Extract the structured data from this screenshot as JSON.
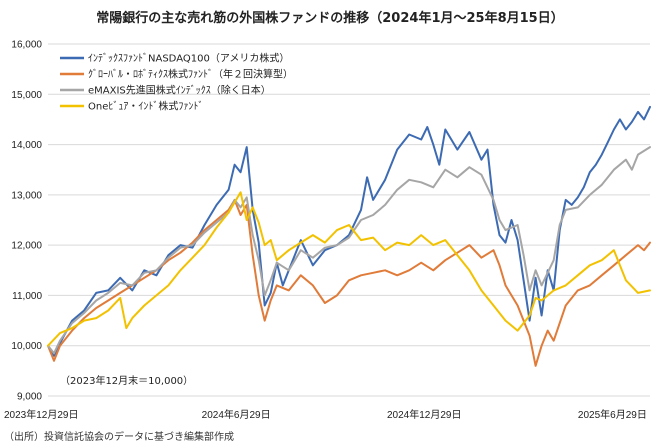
{
  "chart_data": {
    "type": "line",
    "title": "常陽銀行の主な売れ筋の外国株ファンドの推移（2024年1月〜25年8月15日）",
    "xlabel": "",
    "ylabel": "",
    "ylim": [
      9000,
      16000
    ],
    "y_ticks": [
      9000,
      10000,
      11000,
      12000,
      13000,
      14000,
      15000,
      16000
    ],
    "y_tick_labels": [
      "9,000",
      "10,000",
      "11,000",
      "12,000",
      "13,000",
      "14,000",
      "15,000",
      "16,000"
    ],
    "x_ticks": [
      {
        "label": "2023年12月29日",
        "t": 0
      },
      {
        "label": "2024年6月29日",
        "t": 0.3125
      },
      {
        "label": "2024年12月29日",
        "t": 0.625
      },
      {
        "label": "2025年6月29日",
        "t": 0.9375
      }
    ],
    "grid": true,
    "note": "（2023年12月末＝10,000）",
    "source": "（出所）投資信託協会のデータに基づき編集部作成",
    "series": [
      {
        "name": "ｲﾝﾃﾞｯｸｽﾌｧﾝﾄﾞNASDAQ100（アメリカ株式）",
        "color": "#3d6bb3",
        "points": [
          [
            0.0,
            10000
          ],
          [
            0.01,
            9800
          ],
          [
            0.02,
            10050
          ],
          [
            0.04,
            10500
          ],
          [
            0.06,
            10700
          ],
          [
            0.08,
            11050
          ],
          [
            0.1,
            11100
          ],
          [
            0.12,
            11350
          ],
          [
            0.14,
            11100
          ],
          [
            0.16,
            11500
          ],
          [
            0.18,
            11400
          ],
          [
            0.2,
            11800
          ],
          [
            0.22,
            12000
          ],
          [
            0.24,
            11950
          ],
          [
            0.26,
            12400
          ],
          [
            0.28,
            12800
          ],
          [
            0.3,
            13100
          ],
          [
            0.31,
            13600
          ],
          [
            0.32,
            13450
          ],
          [
            0.33,
            13950
          ],
          [
            0.34,
            12700
          ],
          [
            0.35,
            12050
          ],
          [
            0.36,
            10800
          ],
          [
            0.37,
            11050
          ],
          [
            0.38,
            11650
          ],
          [
            0.39,
            11200
          ],
          [
            0.4,
            11500
          ],
          [
            0.42,
            12100
          ],
          [
            0.44,
            11600
          ],
          [
            0.46,
            11900
          ],
          [
            0.48,
            12000
          ],
          [
            0.5,
            12200
          ],
          [
            0.52,
            12700
          ],
          [
            0.53,
            13350
          ],
          [
            0.54,
            12900
          ],
          [
            0.56,
            13300
          ],
          [
            0.58,
            13900
          ],
          [
            0.6,
            14200
          ],
          [
            0.62,
            14100
          ],
          [
            0.63,
            14350
          ],
          [
            0.64,
            14000
          ],
          [
            0.65,
            13600
          ],
          [
            0.66,
            14300
          ],
          [
            0.68,
            13900
          ],
          [
            0.7,
            14250
          ],
          [
            0.72,
            13700
          ],
          [
            0.73,
            13900
          ],
          [
            0.74,
            12800
          ],
          [
            0.75,
            12200
          ],
          [
            0.76,
            12050
          ],
          [
            0.77,
            12500
          ],
          [
            0.78,
            12100
          ],
          [
            0.79,
            11300
          ],
          [
            0.8,
            10500
          ],
          [
            0.81,
            11350
          ],
          [
            0.82,
            10600
          ],
          [
            0.83,
            11500
          ],
          [
            0.84,
            11100
          ],
          [
            0.85,
            12300
          ],
          [
            0.86,
            12900
          ],
          [
            0.87,
            12800
          ],
          [
            0.88,
            12950
          ],
          [
            0.89,
            13150
          ],
          [
            0.9,
            13450
          ],
          [
            0.91,
            13600
          ],
          [
            0.92,
            13800
          ],
          [
            0.93,
            14050
          ],
          [
            0.94,
            14300
          ],
          [
            0.95,
            14500
          ],
          [
            0.96,
            14300
          ],
          [
            0.97,
            14450
          ],
          [
            0.98,
            14650
          ],
          [
            0.99,
            14500
          ],
          [
            1.0,
            14750
          ]
        ]
      },
      {
        "name": "ｸﾞﾛｰﾊﾞﾙ・ﾛﾎﾞﾃｨｸｽ株式ﾌｧﾝﾄﾞ（年２回決算型）",
        "color": "#e07b39",
        "points": [
          [
            0.0,
            10000
          ],
          [
            0.01,
            9700
          ],
          [
            0.02,
            10000
          ],
          [
            0.04,
            10300
          ],
          [
            0.06,
            10550
          ],
          [
            0.08,
            10750
          ],
          [
            0.1,
            10900
          ],
          [
            0.12,
            11050
          ],
          [
            0.14,
            11200
          ],
          [
            0.16,
            11350
          ],
          [
            0.18,
            11500
          ],
          [
            0.2,
            11700
          ],
          [
            0.22,
            11850
          ],
          [
            0.24,
            12050
          ],
          [
            0.26,
            12300
          ],
          [
            0.28,
            12500
          ],
          [
            0.3,
            12700
          ],
          [
            0.31,
            12900
          ],
          [
            0.32,
            12600
          ],
          [
            0.33,
            12800
          ],
          [
            0.34,
            11800
          ],
          [
            0.35,
            11000
          ],
          [
            0.36,
            10500
          ],
          [
            0.37,
            10900
          ],
          [
            0.38,
            11200
          ],
          [
            0.4,
            11100
          ],
          [
            0.42,
            11400
          ],
          [
            0.44,
            11200
          ],
          [
            0.46,
            10850
          ],
          [
            0.48,
            11000
          ],
          [
            0.5,
            11300
          ],
          [
            0.52,
            11400
          ],
          [
            0.54,
            11450
          ],
          [
            0.56,
            11500
          ],
          [
            0.58,
            11400
          ],
          [
            0.6,
            11500
          ],
          [
            0.62,
            11650
          ],
          [
            0.64,
            11500
          ],
          [
            0.66,
            11700
          ],
          [
            0.68,
            11850
          ],
          [
            0.7,
            12000
          ],
          [
            0.72,
            11750
          ],
          [
            0.74,
            11900
          ],
          [
            0.75,
            11600
          ],
          [
            0.76,
            11200
          ],
          [
            0.78,
            10800
          ],
          [
            0.8,
            10200
          ],
          [
            0.81,
            9600
          ],
          [
            0.82,
            10000
          ],
          [
            0.83,
            10300
          ],
          [
            0.84,
            10100
          ],
          [
            0.86,
            10800
          ],
          [
            0.88,
            11100
          ],
          [
            0.9,
            11200
          ],
          [
            0.92,
            11400
          ],
          [
            0.94,
            11600
          ],
          [
            0.96,
            11800
          ],
          [
            0.98,
            12000
          ],
          [
            0.99,
            11900
          ],
          [
            1.0,
            12050
          ]
        ]
      },
      {
        "name": "eMAXIS先進国株式ｲﾝﾃﾞｯｸｽ（除く日本）",
        "color": "#a6a6a6",
        "points": [
          [
            0.0,
            10000
          ],
          [
            0.01,
            9850
          ],
          [
            0.02,
            10100
          ],
          [
            0.04,
            10450
          ],
          [
            0.06,
            10650
          ],
          [
            0.08,
            10900
          ],
          [
            0.1,
            11050
          ],
          [
            0.12,
            11250
          ],
          [
            0.14,
            11200
          ],
          [
            0.16,
            11450
          ],
          [
            0.18,
            11500
          ],
          [
            0.2,
            11750
          ],
          [
            0.22,
            11950
          ],
          [
            0.24,
            12000
          ],
          [
            0.26,
            12250
          ],
          [
            0.28,
            12450
          ],
          [
            0.3,
            12650
          ],
          [
            0.31,
            12900
          ],
          [
            0.32,
            12750
          ],
          [
            0.33,
            12950
          ],
          [
            0.34,
            12200
          ],
          [
            0.35,
            11700
          ],
          [
            0.36,
            11000
          ],
          [
            0.37,
            11300
          ],
          [
            0.38,
            11650
          ],
          [
            0.4,
            11500
          ],
          [
            0.42,
            11900
          ],
          [
            0.44,
            11750
          ],
          [
            0.46,
            11950
          ],
          [
            0.48,
            12000
          ],
          [
            0.5,
            12150
          ],
          [
            0.52,
            12500
          ],
          [
            0.54,
            12600
          ],
          [
            0.56,
            12800
          ],
          [
            0.58,
            13100
          ],
          [
            0.6,
            13300
          ],
          [
            0.62,
            13250
          ],
          [
            0.64,
            13150
          ],
          [
            0.66,
            13500
          ],
          [
            0.68,
            13350
          ],
          [
            0.7,
            13550
          ],
          [
            0.72,
            13400
          ],
          [
            0.74,
            12900
          ],
          [
            0.75,
            12500
          ],
          [
            0.76,
            12300
          ],
          [
            0.78,
            12400
          ],
          [
            0.79,
            11800
          ],
          [
            0.8,
            11100
          ],
          [
            0.81,
            11500
          ],
          [
            0.82,
            11200
          ],
          [
            0.84,
            11700
          ],
          [
            0.85,
            12400
          ],
          [
            0.86,
            12700
          ],
          [
            0.88,
            12750
          ],
          [
            0.9,
            13000
          ],
          [
            0.92,
            13200
          ],
          [
            0.94,
            13500
          ],
          [
            0.96,
            13700
          ],
          [
            0.97,
            13500
          ],
          [
            0.98,
            13800
          ],
          [
            1.0,
            13950
          ]
        ]
      },
      {
        "name": "Oneﾋﾞｭｱ・ｲﾝﾄﾞ株式ﾌｧﾝﾄﾞ",
        "color": "#f2c200",
        "points": [
          [
            0.0,
            10000
          ],
          [
            0.02,
            10250
          ],
          [
            0.04,
            10350
          ],
          [
            0.06,
            10500
          ],
          [
            0.08,
            10550
          ],
          [
            0.1,
            10700
          ],
          [
            0.12,
            10950
          ],
          [
            0.13,
            10350
          ],
          [
            0.14,
            10550
          ],
          [
            0.16,
            10800
          ],
          [
            0.18,
            11000
          ],
          [
            0.2,
            11200
          ],
          [
            0.22,
            11500
          ],
          [
            0.24,
            11750
          ],
          [
            0.26,
            12000
          ],
          [
            0.28,
            12350
          ],
          [
            0.3,
            12650
          ],
          [
            0.31,
            12850
          ],
          [
            0.32,
            13050
          ],
          [
            0.33,
            12500
          ],
          [
            0.34,
            12750
          ],
          [
            0.35,
            12450
          ],
          [
            0.36,
            12000
          ],
          [
            0.37,
            12100
          ],
          [
            0.38,
            11700
          ],
          [
            0.4,
            11900
          ],
          [
            0.42,
            12050
          ],
          [
            0.44,
            12200
          ],
          [
            0.46,
            12050
          ],
          [
            0.48,
            12300
          ],
          [
            0.5,
            12400
          ],
          [
            0.52,
            12100
          ],
          [
            0.54,
            12150
          ],
          [
            0.56,
            11900
          ],
          [
            0.58,
            12050
          ],
          [
            0.6,
            12000
          ],
          [
            0.62,
            12200
          ],
          [
            0.64,
            12000
          ],
          [
            0.66,
            12100
          ],
          [
            0.68,
            11800
          ],
          [
            0.7,
            11500
          ],
          [
            0.72,
            11100
          ],
          [
            0.74,
            10800
          ],
          [
            0.76,
            10500
          ],
          [
            0.78,
            10300
          ],
          [
            0.8,
            10600
          ],
          [
            0.81,
            10950
          ],
          [
            0.82,
            10900
          ],
          [
            0.84,
            11100
          ],
          [
            0.86,
            11200
          ],
          [
            0.88,
            11400
          ],
          [
            0.9,
            11600
          ],
          [
            0.92,
            11700
          ],
          [
            0.94,
            11900
          ],
          [
            0.95,
            11600
          ],
          [
            0.96,
            11300
          ],
          [
            0.98,
            11050
          ],
          [
            1.0,
            11100
          ]
        ]
      }
    ]
  }
}
